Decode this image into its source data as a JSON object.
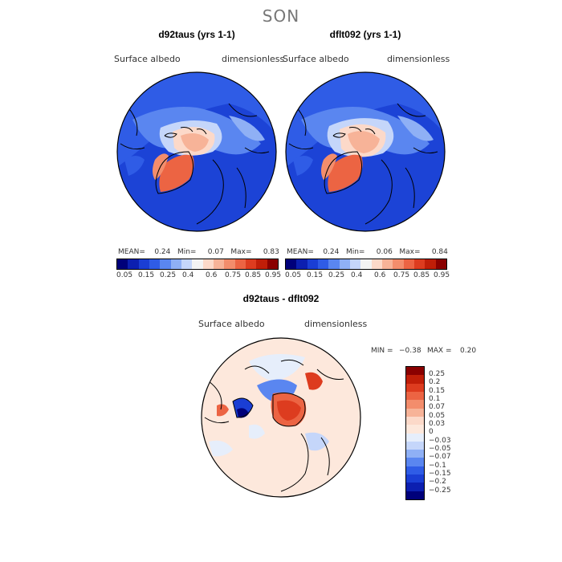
{
  "season": "SON",
  "map1": {
    "title": "d92taus (yrs 1-1)",
    "var_label": "Surface albedo",
    "units": "dimensionless",
    "stats": "MEAN=    0.24   Min=     0.07   Max=     0.83"
  },
  "map2": {
    "title": "dflt092 (yrs 1-1)",
    "var_label": "Surface albedo",
    "units": "dimensionless",
    "stats": "MEAN=    0.24   Min=     0.06   Max=     0.84"
  },
  "abs_colorbar": {
    "colors": [
      "#00007a",
      "#0c1fb0",
      "#1a3ed4",
      "#2f5ce6",
      "#5a86f0",
      "#8fb0f5",
      "#c5d6fa",
      "#f3f3f3",
      "#fcd9c9",
      "#f7b398",
      "#f38d6c",
      "#ec6443",
      "#dd3c1f",
      "#c01e08",
      "#8a0000"
    ],
    "labels": [
      "0.05",
      "0.15",
      "0.25",
      "0.4",
      "0.6",
      "0.75",
      "0.85",
      "0.95"
    ]
  },
  "diff_map": {
    "title": "d92taus - dflt092",
    "var_label": "Surface albedo",
    "units": "dimensionless",
    "min_label": "MIN =",
    "min_value": "−0.38",
    "max_label": "MAX =",
    "max_value": "0.20"
  },
  "diff_colorbar": {
    "colors": [
      "#8a0000",
      "#c01e08",
      "#dd3c1f",
      "#ec6443",
      "#f38d6c",
      "#f7b398",
      "#fcd9c9",
      "#fde8dc",
      "#e6eefb",
      "#c5d6fa",
      "#8fb0f5",
      "#5a86f0",
      "#2f5ce6",
      "#1a3ed4",
      "#0c1fb0",
      "#00007a"
    ],
    "labels": [
      "0.25",
      "0.2",
      "0.15",
      "0.1",
      "0.07",
      "0.05",
      "0.03",
      "0",
      "−0.03",
      "−0.05",
      "−0.07",
      "−0.1",
      "−0.15",
      "−0.2",
      "−0.25"
    ]
  }
}
